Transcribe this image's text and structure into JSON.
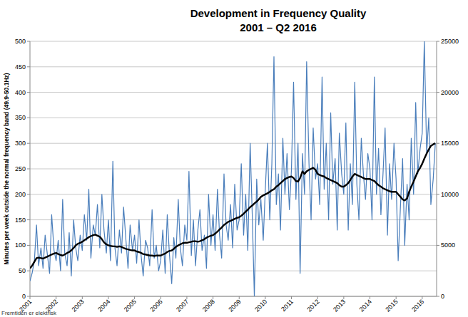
{
  "chart_data": {
    "type": "line",
    "title": "Development in Frequency Quality",
    "subtitle": "2001 – Q2 2016",
    "y_label": "Minutes per week outside the normal frequency band (49.9-50.1Hz)",
    "footer": "Fremtiden er elektrisk",
    "x": [
      2001.0,
      2001.08,
      2001.17,
      2001.25,
      2001.33,
      2001.42,
      2001.5,
      2001.58,
      2001.67,
      2001.75,
      2001.83,
      2001.92,
      2002.0,
      2002.08,
      2002.17,
      2002.25,
      2002.33,
      2002.42,
      2002.5,
      2002.58,
      2002.67,
      2002.75,
      2002.83,
      2002.92,
      2003.0,
      2003.08,
      2003.17,
      2003.25,
      2003.33,
      2003.42,
      2003.5,
      2003.58,
      2003.67,
      2003.75,
      2003.83,
      2003.92,
      2004.0,
      2004.08,
      2004.17,
      2004.25,
      2004.33,
      2004.42,
      2004.5,
      2004.58,
      2004.67,
      2004.75,
      2004.83,
      2004.92,
      2005.0,
      2005.08,
      2005.17,
      2005.25,
      2005.33,
      2005.42,
      2005.5,
      2005.58,
      2005.67,
      2005.75,
      2005.83,
      2005.92,
      2006.0,
      2006.08,
      2006.17,
      2006.25,
      2006.33,
      2006.42,
      2006.5,
      2006.58,
      2006.67,
      2006.75,
      2006.83,
      2006.92,
      2007.0,
      2007.08,
      2007.17,
      2007.25,
      2007.33,
      2007.42,
      2007.5,
      2007.58,
      2007.67,
      2007.75,
      2007.83,
      2007.92,
      2008.0,
      2008.08,
      2008.17,
      2008.25,
      2008.33,
      2008.42,
      2008.5,
      2008.58,
      2008.67,
      2008.75,
      2008.83,
      2008.92,
      2009.0,
      2009.08,
      2009.17,
      2009.25,
      2009.33,
      2009.42,
      2009.5,
      2009.58,
      2009.67,
      2009.75,
      2009.83,
      2009.92,
      2010.0,
      2010.08,
      2010.17,
      2010.25,
      2010.33,
      2010.42,
      2010.5,
      2010.58,
      2010.67,
      2010.75,
      2010.83,
      2010.92,
      2011.0,
      2011.08,
      2011.17,
      2011.25,
      2011.33,
      2011.42,
      2011.5,
      2011.58,
      2011.67,
      2011.75,
      2011.83,
      2011.92,
      2012.0,
      2012.08,
      2012.17,
      2012.25,
      2012.33,
      2012.42,
      2012.5,
      2012.58,
      2012.67,
      2012.75,
      2012.83,
      2012.92,
      2013.0,
      2013.08,
      2013.17,
      2013.25,
      2013.33,
      2013.42,
      2013.5,
      2013.58,
      2013.67,
      2013.75,
      2013.83,
      2013.92,
      2014.0,
      2014.08,
      2014.17,
      2014.25,
      2014.33,
      2014.42,
      2014.5,
      2014.58,
      2014.67,
      2014.75,
      2014.83,
      2014.92,
      2015.0,
      2015.08,
      2015.17,
      2015.25,
      2015.33,
      2015.42,
      2015.5,
      2015.58,
      2015.67,
      2015.75,
      2015.83,
      2015.92,
      2016.0,
      2016.08,
      2016.17,
      2016.25,
      2016.33,
      2016.42,
      2016.5
    ],
    "series": [
      {
        "color": "#4a7ebb",
        "values": [
          30,
          45,
          70,
          140,
          60,
          95,
          55,
          120,
          80,
          45,
          160,
          90,
          70,
          110,
          50,
          190,
          85,
          60,
          125,
          40,
          150,
          95,
          70,
          120,
          90,
          160,
          110,
          210,
          75,
          140,
          120,
          180,
          95,
          200,
          130,
          85,
          150,
          70,
          265,
          95,
          60,
          130,
          85,
          175,
          110,
          55,
          140,
          90,
          120,
          65,
          150,
          80,
          40,
          110,
          95,
          60,
          170,
          75,
          100,
          50,
          70,
          130,
          45,
          160,
          85,
          25,
          115,
          75,
          190,
          95,
          60,
          140,
          110,
          245,
          80,
          150,
          60,
          130,
          170,
          90,
          120,
          55,
          200,
          100,
          160,
          90,
          210,
          120,
          75,
          240,
          140,
          110,
          180,
          95,
          220,
          130,
          150,
          260,
          120,
          200,
          90,
          300,
          160,
          0,
          230,
          140,
          190,
          110,
          210,
          300,
          150,
          260,
          470,
          180,
          240,
          130,
          310,
          200,
          280,
          170,
          250,
          420,
          190,
          300,
          45,
          280,
          200,
          460,
          260,
          150,
          330,
          230,
          260,
          180,
          430,
          210,
          300,
          150,
          360,
          220,
          270,
          130,
          320,
          240,
          200,
          340,
          130,
          260,
          180,
          420,
          220,
          150,
          310,
          240,
          190,
          280,
          250,
          150,
          430,
          200,
          290,
          160,
          240,
          330,
          120,
          260,
          190,
          300,
          230,
          70,
          180,
          270,
          100,
          220,
          150,
          310,
          200,
          380,
          240,
          290,
          320,
          500,
          280,
          350,
          180,
          230,
          300
        ]
      },
      {
        "color": "#000000",
        "values": [
          55,
          60,
          68,
          75,
          76,
          75,
          74,
          76,
          78,
          80,
          82,
          84,
          85,
          83,
          81,
          80,
          82,
          85,
          87,
          90,
          95,
          100,
          103,
          105,
          107,
          110,
          113,
          116,
          118,
          120,
          121,
          119,
          117,
          112,
          106,
          102,
          100,
          99,
          98,
          98,
          97,
          98,
          97,
          95,
          93,
          92,
          91,
          90,
          90,
          88,
          87,
          85,
          83,
          82,
          81,
          80,
          80,
          79,
          80,
          80,
          80,
          82,
          84,
          87,
          89,
          90,
          93,
          97,
          100,
          102,
          104,
          105,
          105,
          106,
          107,
          108,
          108,
          107,
          108,
          110,
          112,
          115,
          117,
          119,
          120,
          123,
          127,
          131,
          135,
          140,
          143,
          146,
          148,
          150,
          152,
          154,
          155,
          158,
          162,
          166,
          170,
          175,
          178,
          182,
          186,
          190,
          195,
          198,
          200,
          202,
          205,
          208,
          210,
          215,
          218,
          222,
          226,
          230,
          232,
          234,
          235,
          232,
          226,
          225,
          232,
          245,
          240,
          245,
          248,
          250,
          252,
          248,
          240,
          238,
          236,
          235,
          232,
          230,
          228,
          226,
          224,
          222,
          218,
          215,
          215,
          218,
          222,
          228,
          235,
          240,
          238,
          236,
          234,
          232,
          230,
          230,
          230,
          228,
          226,
          222,
          218,
          215,
          212,
          210,
          208,
          206,
          205,
          205,
          205,
          200,
          195,
          190,
          188,
          192,
          205,
          215,
          225,
          235,
          245,
          252,
          260,
          270,
          280,
          288,
          295,
          298,
          300
        ]
      }
    ],
    "xlim": [
      2001,
      2016.55
    ],
    "xticks": [
      2001,
      2002,
      2003,
      2004,
      2005,
      2006,
      2007,
      2008,
      2009,
      2010,
      2011,
      2012,
      2013,
      2014,
      2015,
      2016
    ],
    "ylim": [
      0,
      500
    ],
    "yticks": [
      0,
      50,
      100,
      150,
      200,
      250,
      300,
      350,
      400,
      450,
      500
    ],
    "y2lim": [
      0,
      25000
    ],
    "y2ticks": [
      0,
      5000,
      10000,
      15000,
      20000,
      25000
    ],
    "grid": true
  }
}
